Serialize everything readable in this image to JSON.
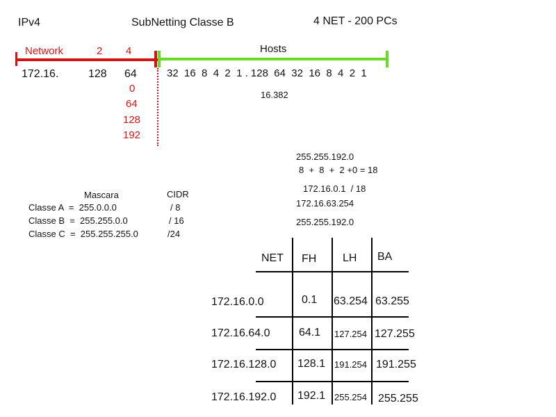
{
  "header": {
    "ipv4": "IPv4",
    "title": "SubNetting Classe B",
    "spec": "4 NET - 200 PCs"
  },
  "bit_bar": {
    "network_label": "Network",
    "n2": "2",
    "n4": "4",
    "hosts_label": "Hosts",
    "prefix": "172.16.",
    "b128": "128",
    "b64": "64",
    "host_bits": "32  16  8  4  2  1 . 128  64  32  16  8  4  2  1",
    "host_count": "16.382",
    "network_color": "#d11414",
    "hosts_color": "#66dd22"
  },
  "octet_values": [
    "0",
    "64",
    "128",
    "192"
  ],
  "calc": {
    "mask": "255.255.192.0",
    "sum": "8  +  8  +  2 +0 = 18",
    "ip_cidr": "172.16.0.1  / 18",
    "last_host": "172.16.63.254",
    "mask2": "255.255.192.0"
  },
  "class_table": {
    "mascara_header": "Mascara",
    "cidr_header": "CIDR",
    "rows": [
      {
        "label": "Classe A  =  255.0.0.0",
        "cidr": "/ 8"
      },
      {
        "label": "Classe B  =  255.255.0.0",
        "cidr": "/ 16"
      },
      {
        "label": "Classe C  =  255.255.255.0",
        "cidr": "/24"
      }
    ]
  },
  "subnet_table": {
    "headers": [
      "NET",
      "FH",
      "LH",
      "BA"
    ],
    "rows": [
      {
        "net": "172.16.0.0",
        "fh": "0.1",
        "lh": "63.254",
        "ba": "63.255"
      },
      {
        "net": "172.16.64.0",
        "fh": "64.1",
        "lh": "127.254",
        "ba": "127.255"
      },
      {
        "net": "172.16.128.0",
        "fh": "128.1",
        "lh": "191.254",
        "ba": "191.255"
      },
      {
        "net": "172.16.192.0",
        "fh": "192.1",
        "lh": "255.254",
        "ba": "255.255"
      }
    ]
  }
}
